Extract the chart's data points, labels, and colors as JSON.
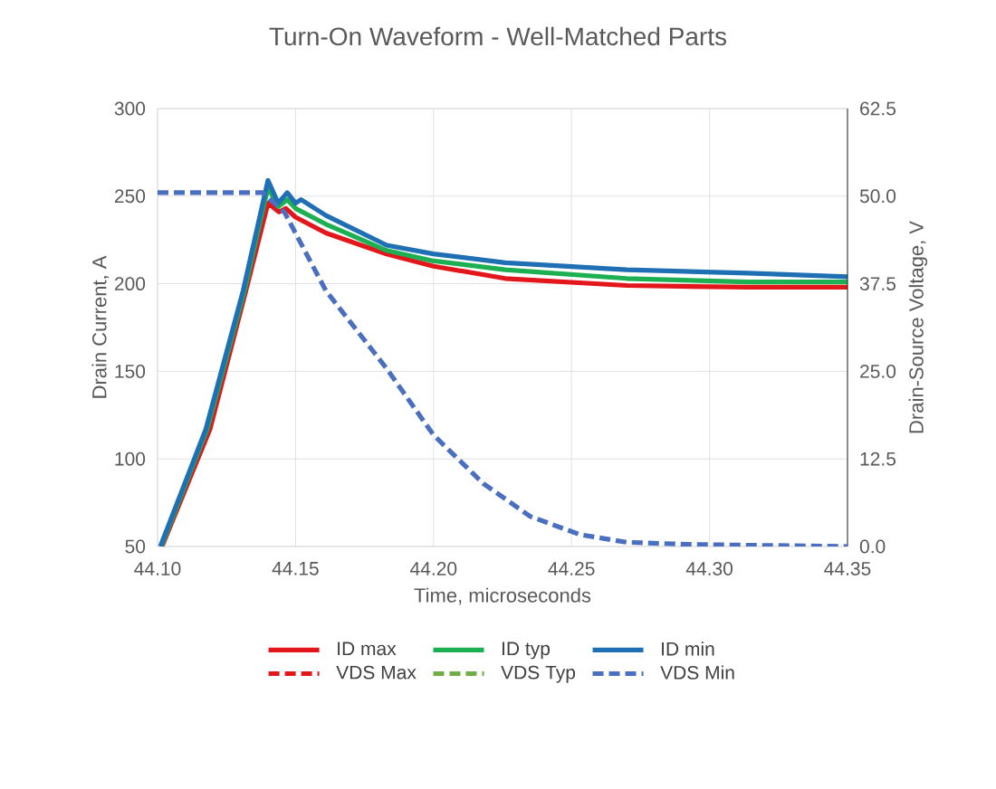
{
  "chart_data": {
    "type": "line",
    "title": "Turn-On Waveform - Well-Matched Parts",
    "xlabel": "Time, microseconds",
    "ylabel": "Drain Current, A",
    "y2label": "Drain-Source Voltage, V",
    "xlim": [
      44.1,
      44.35
    ],
    "xticks": [
      {
        "value": 44.1,
        "label": "44.10"
      },
      {
        "value": 44.15,
        "label": "44.15"
      },
      {
        "value": 44.2,
        "label": "44.20"
      },
      {
        "value": 44.25,
        "label": "44.25"
      },
      {
        "value": 44.3,
        "label": "44.30"
      },
      {
        "value": 44.35,
        "label": "44.35"
      }
    ],
    "ylim": [
      50,
      300
    ],
    "yticks": [
      50,
      100,
      150,
      200,
      250,
      300
    ],
    "y2lim": [
      0,
      62.5
    ],
    "y2ticks": [
      {
        "value": 0,
        "label": "0.0"
      },
      {
        "value": 12.5,
        "label": "12.5"
      },
      {
        "value": 25,
        "label": "25.0"
      },
      {
        "value": 37.5,
        "label": "37.5"
      },
      {
        "value": 50,
        "label": "50.0"
      },
      {
        "value": 62.5,
        "label": "62.5"
      }
    ],
    "grid": true,
    "legend": "bottom",
    "series": [
      {
        "name": "ID max",
        "color": "#e3161b",
        "line_style": "solid",
        "x": [
          44.1016,
          44.119,
          44.132,
          44.14,
          44.144,
          44.1465,
          44.15,
          44.161,
          44.183,
          44.2,
          44.226,
          44.27,
          44.314,
          44.35
        ],
        "values": [
          50,
          117,
          196,
          246,
          241,
          243,
          238,
          229,
          217,
          210,
          203,
          199,
          198,
          198
        ]
      },
      {
        "name": "ID typ",
        "color": "#1db052",
        "line_style": "solid",
        "x": [
          44.1013,
          44.118,
          44.1315,
          44.14,
          44.1437,
          44.147,
          44.15,
          44.161,
          44.183,
          44.2,
          44.226,
          44.27,
          44.314,
          44.35
        ],
        "values": [
          50,
          117,
          196,
          255,
          244,
          248,
          243,
          234,
          219,
          213,
          208,
          203,
          201,
          201
        ]
      },
      {
        "name": "ID min",
        "color": "#1f6fb4",
        "line_style": "solid",
        "x": [
          44.101,
          44.1175,
          44.131,
          44.14,
          44.1437,
          44.147,
          44.15,
          44.152,
          44.161,
          44.183,
          44.2,
          44.226,
          44.27,
          44.314,
          44.35
        ],
        "values": [
          50,
          117,
          196,
          259,
          246,
          252,
          246,
          248,
          239,
          222,
          217,
          212,
          208,
          206,
          204
        ]
      },
      {
        "name": "VDS Max",
        "color": "#e3161b",
        "line_style": "dashed",
        "axis": "y2"
      },
      {
        "name": "VDS Typ",
        "color": "#70ad47",
        "line_style": "dashed",
        "axis": "y2"
      },
      {
        "name": "VDS Min",
        "color": "#4a6fbf",
        "line_style": "dashed",
        "axis": "y2",
        "x": [
          44.1,
          44.138,
          44.146,
          44.161,
          44.183,
          44.2,
          44.218,
          44.235,
          44.253,
          44.27,
          44.292,
          44.35
        ],
        "values": [
          50.5,
          50.5,
          47.7,
          36.5,
          25.4,
          15.9,
          9.0,
          4.3,
          1.7,
          0.6,
          0.3,
          0
        ]
      }
    ]
  }
}
